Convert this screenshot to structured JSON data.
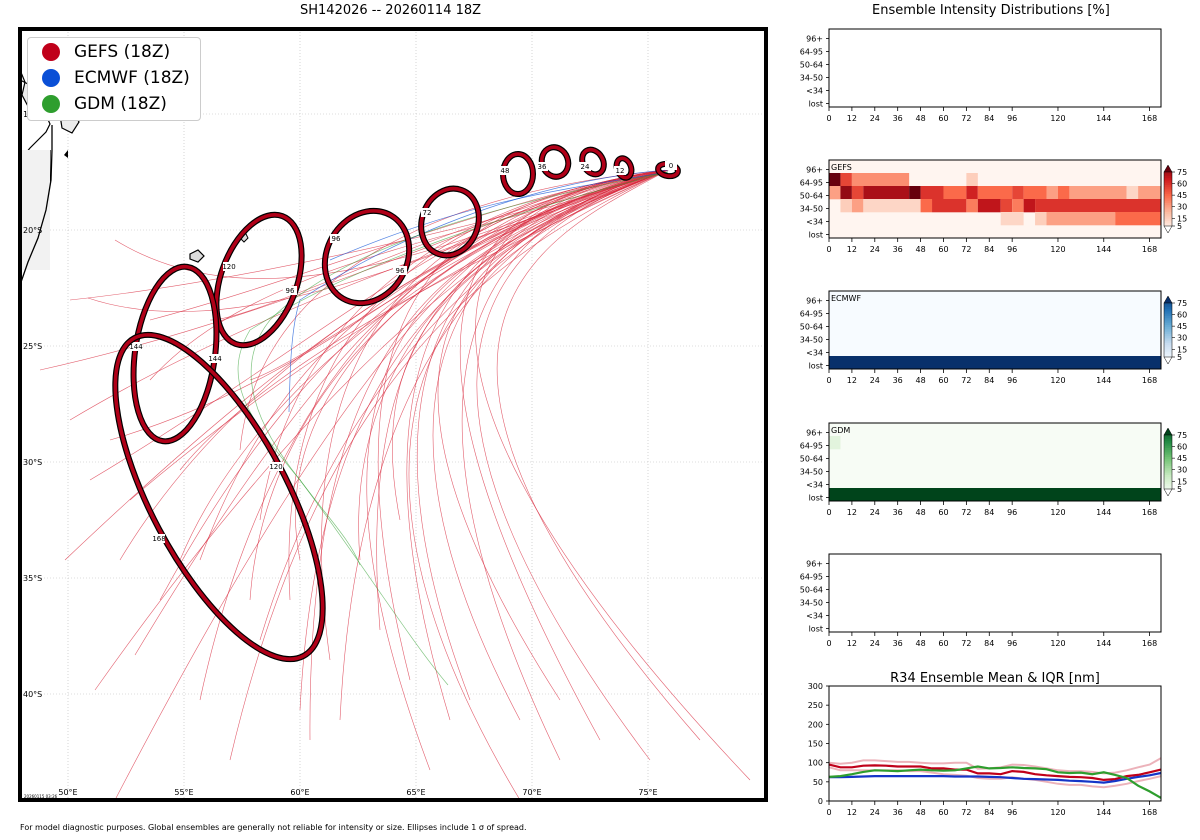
{
  "titles": {
    "map": "SH142026 -- 20260114 18Z",
    "ensemble": "Ensemble Intensity Distributions [%]",
    "r34": "R34 Ensemble Mean & IQR [nm]"
  },
  "legend": [
    {
      "label": "GEFS (18Z)",
      "color": "#c0001a"
    },
    {
      "label": "ECMWF (18Z)",
      "color": "#0a4fd6"
    },
    {
      "label": "GDM (18Z)",
      "color": "#2e9e2e"
    }
  ],
  "map": {
    "lon_ticks": [
      "50°E",
      "55°E",
      "60°E",
      "65°E",
      "70°E",
      "75°E"
    ],
    "lat_ticks": [
      "15°S",
      "20°S",
      "25°S",
      "30°S",
      "35°S",
      "40°S"
    ],
    "stamp": "20260115 03:26",
    "ellipse_labels": [
      "0",
      "12",
      "24",
      "36",
      "48",
      "72",
      "96",
      "96",
      "120",
      "120",
      "144",
      "144",
      "168",
      "168"
    ]
  },
  "footnote": "For model diagnostic purposes. Global ensembles are generally not reliable for intensity or size. Ellipses include 1 σ of spread.",
  "chart_data": [
    {
      "type": "heatmap",
      "title": "Ensemble Intensity Distributions [%]",
      "panels": [
        {
          "name": "",
          "rows": []
        },
        {
          "name": "GEFS",
          "colormap": "Reds",
          "rows": [
            {
              "label": "96+",
              "values": []
            },
            {
              "label": "64-95",
              "values": [
                {
                  "from": 0,
                  "to": 6,
                  "v": 90
                },
                {
                  "from": 6,
                  "to": 12,
                  "v": 55
                },
                {
                  "from": 12,
                  "to": 42,
                  "v": 35
                },
                {
                  "from": 72,
                  "to": 78,
                  "v": 15
                }
              ]
            },
            {
              "label": "50-64",
              "values": [
                {
                  "from": 0,
                  "to": 6,
                  "v": 30
                },
                {
                  "from": 6,
                  "to": 12,
                  "v": 80
                },
                {
                  "from": 12,
                  "to": 18,
                  "v": 55
                },
                {
                  "from": 18,
                  "to": 42,
                  "v": 75
                },
                {
                  "from": 42,
                  "to": 48,
                  "v": 95
                },
                {
                  "from": 48,
                  "to": 60,
                  "v": 60
                },
                {
                  "from": 60,
                  "to": 72,
                  "v": 45
                },
                {
                  "from": 72,
                  "to": 78,
                  "v": 65
                },
                {
                  "from": 78,
                  "to": 96,
                  "v": 45
                },
                {
                  "from": 96,
                  "to": 102,
                  "v": 55
                },
                {
                  "from": 102,
                  "to": 114,
                  "v": 45
                },
                {
                  "from": 114,
                  "to": 120,
                  "v": 30
                },
                {
                  "from": 120,
                  "to": 126,
                  "v": 45
                },
                {
                  "from": 126,
                  "to": 156,
                  "v": 30
                },
                {
                  "from": 156,
                  "to": 162,
                  "v": 12
                },
                {
                  "from": 162,
                  "to": 174,
                  "v": 30
                }
              ]
            },
            {
              "label": "34-50",
              "values": [
                {
                  "from": 6,
                  "to": 12,
                  "v": 15
                },
                {
                  "from": 12,
                  "to": 18,
                  "v": 30
                },
                {
                  "from": 18,
                  "to": 48,
                  "v": 12
                },
                {
                  "from": 48,
                  "to": 54,
                  "v": 45
                },
                {
                  "from": 54,
                  "to": 72,
                  "v": 60
                },
                {
                  "from": 72,
                  "to": 78,
                  "v": 40
                },
                {
                  "from": 78,
                  "to": 90,
                  "v": 70
                },
                {
                  "from": 90,
                  "to": 96,
                  "v": 55
                },
                {
                  "from": 96,
                  "to": 102,
                  "v": 40
                },
                {
                  "from": 102,
                  "to": 108,
                  "v": 70
                },
                {
                  "from": 108,
                  "to": 174,
                  "v": 60
                }
              ]
            },
            {
              "label": "<34",
              "values": [
                {
                  "from": 90,
                  "to": 102,
                  "v": 12
                },
                {
                  "from": 108,
                  "to": 114,
                  "v": 15
                },
                {
                  "from": 114,
                  "to": 150,
                  "v": 30
                },
                {
                  "from": 150,
                  "to": 174,
                  "v": 45
                }
              ]
            },
            {
              "label": "lost",
              "values": []
            }
          ]
        },
        {
          "name": "ECMWF",
          "colormap": "Blues",
          "rows": [
            {
              "label": "96+",
              "values": []
            },
            {
              "label": "64-95",
              "values": []
            },
            {
              "label": "50-64",
              "values": []
            },
            {
              "label": "34-50",
              "values": []
            },
            {
              "label": "<34",
              "values": []
            },
            {
              "label": "lost",
              "values": [
                {
                  "from": 0,
                  "to": 174,
                  "v": 100
                }
              ]
            }
          ]
        },
        {
          "name": "GDM",
          "colormap": "Greens",
          "rows": [
            {
              "label": "96+",
              "values": []
            },
            {
              "label": "64-95",
              "values": [
                {
                  "from": 0,
                  "to": 6,
                  "v": 10
                }
              ]
            },
            {
              "label": "50-64",
              "values": []
            },
            {
              "label": "34-50",
              "values": []
            },
            {
              "label": "<34",
              "values": []
            },
            {
              "label": "lost",
              "values": [
                {
                  "from": 0,
                  "to": 174,
                  "v": 100
                }
              ]
            }
          ]
        },
        {
          "name": "",
          "rows": []
        }
      ],
      "row_labels": [
        "96+",
        "64-95",
        "50-64",
        "34-50",
        "<34",
        "lost"
      ],
      "x_ticks": [
        0,
        12,
        24,
        36,
        48,
        60,
        72,
        84,
        96,
        120,
        144,
        168
      ],
      "xlim": [
        0,
        174
      ],
      "colorbar_ticks": [
        5,
        15,
        30,
        45,
        60,
        75
      ]
    },
    {
      "type": "line",
      "title": "R34 Ensemble Mean & IQR [nm]",
      "x": [
        0,
        6,
        12,
        18,
        24,
        30,
        36,
        42,
        48,
        54,
        60,
        66,
        72,
        78,
        84,
        90,
        96,
        102,
        108,
        114,
        120,
        126,
        132,
        138,
        144,
        150,
        156,
        162,
        168,
        174
      ],
      "xlim": [
        0,
        174
      ],
      "ylim": [
        0,
        300
      ],
      "x_ticks": [
        0,
        12,
        24,
        36,
        48,
        60,
        72,
        84,
        96,
        120,
        144,
        168
      ],
      "y_ticks": [
        0,
        50,
        100,
        150,
        200,
        250,
        300
      ],
      "series": [
        {
          "name": "GEFS",
          "color": "#c0001a",
          "values": [
            95,
            88,
            88,
            92,
            93,
            92,
            90,
            90,
            90,
            85,
            85,
            82,
            82,
            72,
            72,
            70,
            78,
            76,
            70,
            67,
            65,
            63,
            62,
            60,
            55,
            57,
            65,
            68,
            75,
            82
          ]
        },
        {
          "name": "ECMWF",
          "color": "#1535c8",
          "values": [
            62,
            62,
            63,
            64,
            65,
            65,
            65,
            65,
            65,
            65,
            65,
            64,
            64,
            64,
            63,
            62,
            60,
            58,
            57,
            56,
            55,
            53,
            52,
            50,
            48,
            52,
            58,
            63,
            67,
            73
          ]
        },
        {
          "name": "GDM",
          "color": "#2e9e2e",
          "values": [
            63,
            65,
            70,
            76,
            80,
            79,
            78,
            80,
            82,
            80,
            79,
            80,
            85,
            90,
            85,
            86,
            88,
            86,
            85,
            83,
            75,
            73,
            74,
            70,
            75,
            68,
            60,
            40,
            25,
            8
          ]
        }
      ],
      "iqr": [
        {
          "name": "GEFS",
          "color": "#c0001a",
          "upper": [
            100,
            97,
            100,
            106,
            106,
            104,
            102,
            102,
            100,
            98,
            98,
            100,
            100,
            84,
            85,
            88,
            95,
            94,
            90,
            85,
            80,
            78,
            78,
            76,
            72,
            74,
            80,
            88,
            95,
            112
          ],
          "lower": [
            88,
            80,
            80,
            80,
            80,
            80,
            80,
            78,
            78,
            74,
            70,
            68,
            66,
            60,
            58,
            58,
            62,
            58,
            55,
            50,
            45,
            42,
            42,
            38,
            36,
            40,
            45,
            52,
            58,
            65
          ]
        }
      ]
    }
  ]
}
